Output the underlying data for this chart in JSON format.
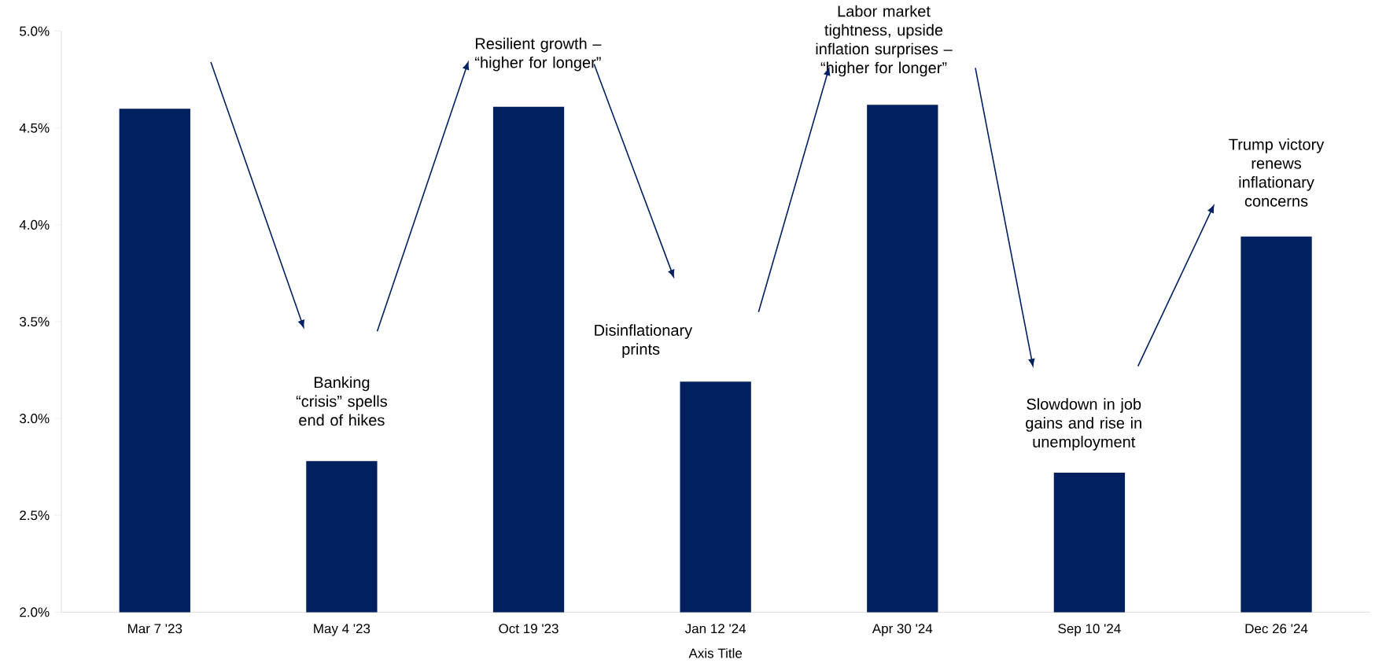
{
  "chart_data": {
    "type": "bar",
    "xlabel": "Axis Title",
    "categories": [
      "Mar 7 '23",
      "May 4 '23",
      "Oct 19 '23",
      "Jan 12 '24",
      "Apr 30 '24",
      "Sep 10 '24",
      "Dec 26 '24"
    ],
    "values": [
      4.6,
      2.78,
      4.61,
      3.19,
      4.62,
      2.72,
      3.94
    ],
    "color": "#002060",
    "ylim": [
      2.0,
      5.0
    ],
    "yticks": [
      {
        "value": 2.0,
        "label": "2.0%"
      },
      {
        "value": 2.5,
        "label": "2.5%"
      },
      {
        "value": 3.0,
        "label": "3.0%"
      },
      {
        "value": 3.5,
        "label": "3.5%"
      },
      {
        "value": 4.0,
        "label": "4.0%"
      },
      {
        "value": 4.5,
        "label": "4.5%"
      },
      {
        "value": 5.0,
        "label": "5.0%"
      }
    ],
    "grid": false,
    "annotations": [
      "Banking “crisis” spells end of hikes",
      "Resilient growth – “higher for longer”",
      "Disinflationary prints",
      "Labor market tightness, upside inflation surprises – “higher for longer”",
      "Slowdown in job gains and rise in unemployment",
      "Trump victory renews inflationary concerns"
    ]
  }
}
